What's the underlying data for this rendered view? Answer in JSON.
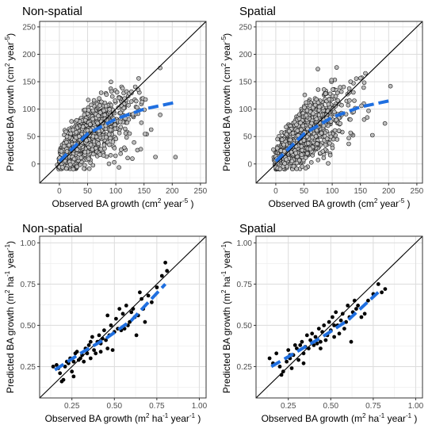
{
  "chart_data": [
    {
      "type": "scatter",
      "title": "Non-spatial",
      "xlabel": {
        "text": "Observed BA growth (cm",
        "sup": "2",
        "rest": " year",
        "sup2": "-5",
        "end": " )"
      },
      "ylabel": {
        "text": "Predicted BA growth (cm",
        "sup": "2",
        "rest": " year",
        "sup2": "-5",
        "end": ")"
      },
      "xlim": [
        -35,
        260
      ],
      "ylim": [
        -35,
        260
      ],
      "xticks": [
        0,
        50,
        100,
        150,
        200,
        250
      ],
      "yticks": [
        0,
        50,
        100,
        150,
        200,
        250
      ],
      "tick_labels": [
        "0",
        "50",
        "100",
        "150",
        "200",
        "250"
      ],
      "grid": true,
      "one_to_one_line": true,
      "point_style": "grey-open",
      "point_color": "#bdbdbd",
      "point_count": 1100,
      "spread": 28,
      "fit_line": {
        "x": [
          0,
          50,
          100,
          150,
          205
        ],
        "y": [
          5,
          55,
          82,
          100,
          112
        ],
        "color": "#1f6fe0"
      }
    },
    {
      "type": "scatter",
      "title": "Spatial",
      "xlabel": {
        "text": "Observed BA growth (cm",
        "sup": "2",
        "rest": " year",
        "sup2": "-5",
        "end": " )"
      },
      "ylabel": {
        "text": "Predicted BA growth (cm",
        "sup": "2",
        "rest": " year",
        "sup2": "-5",
        "end": ")"
      },
      "xlim": [
        -35,
        260
      ],
      "ylim": [
        -35,
        260
      ],
      "xticks": [
        0,
        50,
        100,
        150,
        200,
        250
      ],
      "yticks": [
        0,
        50,
        100,
        150,
        200,
        250
      ],
      "tick_labels": [
        "0",
        "50",
        "100",
        "150",
        "200",
        "250"
      ],
      "grid": true,
      "one_to_one_line": true,
      "point_style": "grey-open",
      "point_color": "#bdbdbd",
      "point_count": 1100,
      "spread": 30,
      "fit_line": {
        "x": [
          0,
          50,
          100,
          150,
          205
        ],
        "y": [
          5,
          55,
          85,
          104,
          116
        ],
        "color": "#1f6fe0"
      }
    },
    {
      "type": "scatter",
      "title": "Non-spatial",
      "xlabel": {
        "text": "Observed BA growth (m",
        "sup": "2",
        "rest": " ha",
        "sup2": "-1",
        "rest2": " year",
        "sup3": "-1",
        "end": " )"
      },
      "ylabel": {
        "text": "Predicted BA growth (m",
        "sup": "2",
        "rest": " ha",
        "sup2": "-1",
        "rest2": " year",
        "sup3": "-1",
        "end": ")"
      },
      "xlim": [
        0.06,
        1.04
      ],
      "ylim": [
        0.06,
        1.04
      ],
      "xticks": [
        0.25,
        0.5,
        0.75,
        1.0
      ],
      "yticks": [
        0.25,
        0.5,
        0.75,
        1.0
      ],
      "tick_labels": [
        "0.25",
        "0.50",
        "0.75",
        "1.00"
      ],
      "grid": true,
      "one_to_one_line": true,
      "point_style": "black-filled",
      "point_color": "#000000",
      "points": [
        [
          0.14,
          0.25
        ],
        [
          0.16,
          0.26
        ],
        [
          0.17,
          0.24
        ],
        [
          0.18,
          0.21
        ],
        [
          0.19,
          0.16
        ],
        [
          0.2,
          0.17
        ],
        [
          0.21,
          0.25
        ],
        [
          0.22,
          0.28
        ],
        [
          0.23,
          0.27
        ],
        [
          0.24,
          0.3
        ],
        [
          0.25,
          0.22
        ],
        [
          0.26,
          0.28
        ],
        [
          0.27,
          0.33
        ],
        [
          0.28,
          0.34
        ],
        [
          0.29,
          0.29
        ],
        [
          0.3,
          0.3
        ],
        [
          0.31,
          0.32
        ],
        [
          0.32,
          0.28
        ],
        [
          0.33,
          0.36
        ],
        [
          0.34,
          0.33
        ],
        [
          0.35,
          0.38
        ],
        [
          0.36,
          0.4
        ],
        [
          0.37,
          0.43
        ],
        [
          0.38,
          0.35
        ],
        [
          0.39,
          0.33
        ],
        [
          0.4,
          0.4
        ],
        [
          0.41,
          0.44
        ],
        [
          0.42,
          0.39
        ],
        [
          0.43,
          0.42
        ],
        [
          0.44,
          0.47
        ],
        [
          0.45,
          0.41
        ],
        [
          0.46,
          0.36
        ],
        [
          0.47,
          0.44
        ],
        [
          0.48,
          0.5
        ],
        [
          0.49,
          0.35
        ],
        [
          0.5,
          0.46
        ],
        [
          0.51,
          0.54
        ],
        [
          0.52,
          0.48
        ],
        [
          0.53,
          0.6
        ],
        [
          0.54,
          0.47
        ],
        [
          0.55,
          0.57
        ],
        [
          0.56,
          0.48
        ],
        [
          0.57,
          0.62
        ],
        [
          0.58,
          0.5
        ],
        [
          0.59,
          0.52
        ],
        [
          0.6,
          0.58
        ],
        [
          0.61,
          0.6
        ],
        [
          0.62,
          0.55
        ],
        [
          0.63,
          0.44
        ],
        [
          0.64,
          0.56
        ],
        [
          0.65,
          0.7
        ],
        [
          0.66,
          0.66
        ],
        [
          0.67,
          0.6
        ],
        [
          0.68,
          0.52
        ],
        [
          0.7,
          0.68
        ],
        [
          0.72,
          0.64
        ],
        [
          0.75,
          0.73
        ],
        [
          0.78,
          0.8
        ],
        [
          0.8,
          0.88
        ],
        [
          0.81,
          0.83
        ],
        [
          0.46,
          0.56
        ],
        [
          0.36,
          0.3
        ],
        [
          0.26,
          0.19
        ],
        [
          0.42,
          0.34
        ]
      ],
      "fit_line": {
        "x": [
          0.15,
          0.3,
          0.45,
          0.6,
          0.8
        ],
        "y": [
          0.23,
          0.33,
          0.42,
          0.53,
          0.75
        ],
        "color": "#1f6fe0"
      }
    },
    {
      "type": "scatter",
      "title": "Spatial",
      "xlabel": {
        "text": "Observed BA growth (m",
        "sup": "2",
        "rest": " ha",
        "sup2": "-1",
        "rest2": " year",
        "sup3": "-1",
        "end": " )"
      },
      "ylabel": {
        "text": "Predicted BA growth (m",
        "sup": "2",
        "rest": " ha",
        "sup2": "-1",
        "rest2": " year",
        "sup3": "-1",
        "end": ")"
      },
      "xlim": [
        0.06,
        1.04
      ],
      "ylim": [
        0.06,
        1.04
      ],
      "xticks": [
        0.25,
        0.5,
        0.75,
        1.0
      ],
      "yticks": [
        0.25,
        0.5,
        0.75,
        1.0
      ],
      "tick_labels": [
        "0.25",
        "0.50",
        "0.75",
        "1.00"
      ],
      "grid": true,
      "one_to_one_line": true,
      "point_style": "black-filled",
      "point_color": "#000000",
      "points": [
        [
          0.14,
          0.3
        ],
        [
          0.16,
          0.27
        ],
        [
          0.18,
          0.33
        ],
        [
          0.2,
          0.25
        ],
        [
          0.21,
          0.2
        ],
        [
          0.22,
          0.22
        ],
        [
          0.24,
          0.28
        ],
        [
          0.25,
          0.35
        ],
        [
          0.26,
          0.3
        ],
        [
          0.27,
          0.24
        ],
        [
          0.28,
          0.32
        ],
        [
          0.29,
          0.38
        ],
        [
          0.3,
          0.36
        ],
        [
          0.31,
          0.29
        ],
        [
          0.32,
          0.38
        ],
        [
          0.33,
          0.4
        ],
        [
          0.34,
          0.33
        ],
        [
          0.35,
          0.37
        ],
        [
          0.36,
          0.44
        ],
        [
          0.37,
          0.36
        ],
        [
          0.38,
          0.41
        ],
        [
          0.39,
          0.45
        ],
        [
          0.4,
          0.38
        ],
        [
          0.41,
          0.43
        ],
        [
          0.42,
          0.39
        ],
        [
          0.43,
          0.48
        ],
        [
          0.44,
          0.36
        ],
        [
          0.45,
          0.46
        ],
        [
          0.46,
          0.5
        ],
        [
          0.47,
          0.41
        ],
        [
          0.48,
          0.44
        ],
        [
          0.49,
          0.52
        ],
        [
          0.5,
          0.47
        ],
        [
          0.51,
          0.55
        ],
        [
          0.52,
          0.43
        ],
        [
          0.53,
          0.58
        ],
        [
          0.54,
          0.5
        ],
        [
          0.55,
          0.45
        ],
        [
          0.56,
          0.53
        ],
        [
          0.57,
          0.57
        ],
        [
          0.58,
          0.48
        ],
        [
          0.59,
          0.52
        ],
        [
          0.6,
          0.62
        ],
        [
          0.61,
          0.55
        ],
        [
          0.62,
          0.4
        ],
        [
          0.63,
          0.58
        ],
        [
          0.64,
          0.65
        ],
        [
          0.65,
          0.6
        ],
        [
          0.66,
          0.62
        ],
        [
          0.68,
          0.55
        ],
        [
          0.7,
          0.57
        ],
        [
          0.72,
          0.65
        ],
        [
          0.75,
          0.69
        ],
        [
          0.78,
          0.75
        ],
        [
          0.8,
          0.7
        ],
        [
          0.82,
          0.72
        ],
        [
          0.44,
          0.4
        ],
        [
          0.34,
          0.27
        ],
        [
          0.26,
          0.32
        ],
        [
          0.52,
          0.5
        ]
      ],
      "fit_line": {
        "x": [
          0.15,
          0.3,
          0.45,
          0.6,
          0.8
        ],
        "y": [
          0.25,
          0.34,
          0.43,
          0.53,
          0.72
        ],
        "color": "#1f6fe0"
      }
    }
  ]
}
